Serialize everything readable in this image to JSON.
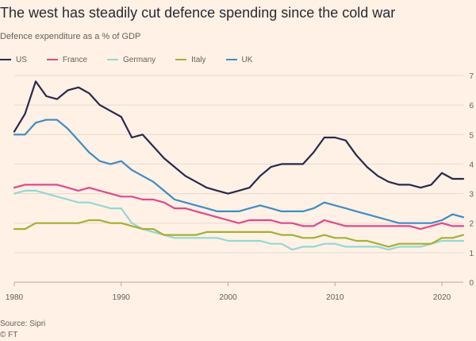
{
  "header": {
    "title": "The west has steadily cut defence spending since the cold war",
    "subtitle": "Defence expenditure as a % of GDP"
  },
  "footer": {
    "source": "Source: Sipri",
    "credit": "© FT"
  },
  "chart_data": {
    "type": "line",
    "title": "The west has steadily cut defence spending since the cold war",
    "ylabel": "Defence expenditure as a % of GDP",
    "xlim": [
      1980,
      2022
    ],
    "ylim": [
      0,
      7
    ],
    "yticks": [
      0,
      1,
      2,
      3,
      4,
      5,
      6,
      7
    ],
    "xticks": [
      1980,
      1990,
      2000,
      2010,
      2020
    ],
    "grid": true,
    "legend_position": "top-left",
    "series": [
      {
        "name": "US",
        "color": "#262a4c",
        "x": [
          1980,
          1981,
          1982,
          1983,
          1984,
          1985,
          1986,
          1987,
          1988,
          1989,
          1990,
          1991,
          1992,
          1993,
          1994,
          1995,
          1996,
          1997,
          1998,
          1999,
          2000,
          2001,
          2002,
          2003,
          2004,
          2005,
          2006,
          2007,
          2008,
          2009,
          2010,
          2011,
          2012,
          2013,
          2014,
          2015,
          2016,
          2017,
          2018,
          2019,
          2020,
          2021,
          2022
        ],
        "values": [
          5.1,
          5.7,
          6.8,
          6.3,
          6.2,
          6.5,
          6.6,
          6.4,
          6.0,
          5.8,
          5.6,
          4.9,
          5.0,
          4.6,
          4.2,
          3.9,
          3.6,
          3.4,
          3.2,
          3.1,
          3.0,
          3.1,
          3.2,
          3.6,
          3.9,
          4.0,
          4.0,
          4.0,
          4.4,
          4.9,
          4.9,
          4.8,
          4.3,
          3.9,
          3.6,
          3.4,
          3.3,
          3.3,
          3.2,
          3.3,
          3.7,
          3.5,
          3.5
        ]
      },
      {
        "name": "France",
        "color": "#e0488c",
        "x": [
          1980,
          1981,
          1982,
          1983,
          1984,
          1985,
          1986,
          1987,
          1988,
          1989,
          1990,
          1991,
          1992,
          1993,
          1994,
          1995,
          1996,
          1997,
          1998,
          1999,
          2000,
          2001,
          2002,
          2003,
          2004,
          2005,
          2006,
          2007,
          2008,
          2009,
          2010,
          2011,
          2012,
          2013,
          2014,
          2015,
          2016,
          2017,
          2018,
          2019,
          2020,
          2021,
          2022
        ],
        "values": [
          3.2,
          3.3,
          3.3,
          3.3,
          3.3,
          3.2,
          3.1,
          3.2,
          3.1,
          3.0,
          2.9,
          2.9,
          2.8,
          2.8,
          2.7,
          2.5,
          2.5,
          2.4,
          2.3,
          2.2,
          2.1,
          2.0,
          2.1,
          2.1,
          2.1,
          2.0,
          2.0,
          1.9,
          1.9,
          2.1,
          2.0,
          1.9,
          1.9,
          1.9,
          1.9,
          1.9,
          1.9,
          1.9,
          1.8,
          1.9,
          2.0,
          1.9,
          1.9
        ]
      },
      {
        "name": "Germany",
        "color": "#96d7d2",
        "x": [
          1980,
          1981,
          1982,
          1983,
          1984,
          1985,
          1986,
          1987,
          1988,
          1989,
          1990,
          1991,
          1992,
          1993,
          1994,
          1995,
          1996,
          1997,
          1998,
          1999,
          2000,
          2001,
          2002,
          2003,
          2004,
          2005,
          2006,
          2007,
          2008,
          2009,
          2010,
          2011,
          2012,
          2013,
          2014,
          2015,
          2016,
          2017,
          2018,
          2019,
          2020,
          2021,
          2022
        ],
        "values": [
          3.0,
          3.1,
          3.1,
          3.0,
          2.9,
          2.8,
          2.7,
          2.7,
          2.6,
          2.5,
          2.5,
          2.0,
          1.8,
          1.7,
          1.6,
          1.5,
          1.5,
          1.5,
          1.5,
          1.5,
          1.4,
          1.4,
          1.4,
          1.4,
          1.3,
          1.3,
          1.1,
          1.2,
          1.2,
          1.3,
          1.3,
          1.2,
          1.2,
          1.2,
          1.2,
          1.1,
          1.2,
          1.2,
          1.2,
          1.3,
          1.4,
          1.4,
          1.4
        ]
      },
      {
        "name": "Italy",
        "color": "#a4b034",
        "x": [
          1980,
          1981,
          1982,
          1983,
          1984,
          1985,
          1986,
          1987,
          1988,
          1989,
          1990,
          1991,
          1992,
          1993,
          1994,
          1995,
          1996,
          1997,
          1998,
          1999,
          2000,
          2001,
          2002,
          2003,
          2004,
          2005,
          2006,
          2007,
          2008,
          2009,
          2010,
          2011,
          2012,
          2013,
          2014,
          2015,
          2016,
          2017,
          2018,
          2019,
          2020,
          2021,
          2022
        ],
        "values": [
          1.8,
          1.8,
          2.0,
          2.0,
          2.0,
          2.0,
          2.0,
          2.1,
          2.1,
          2.0,
          2.0,
          1.9,
          1.8,
          1.8,
          1.6,
          1.6,
          1.6,
          1.6,
          1.7,
          1.7,
          1.7,
          1.7,
          1.7,
          1.7,
          1.7,
          1.6,
          1.6,
          1.5,
          1.5,
          1.6,
          1.5,
          1.5,
          1.4,
          1.4,
          1.3,
          1.2,
          1.3,
          1.3,
          1.3,
          1.3,
          1.5,
          1.5,
          1.6
        ]
      },
      {
        "name": "UK",
        "color": "#3f8cc4",
        "x": [
          1980,
          1981,
          1982,
          1983,
          1984,
          1985,
          1986,
          1987,
          1988,
          1989,
          1990,
          1991,
          1992,
          1993,
          1994,
          1995,
          1996,
          1997,
          1998,
          1999,
          2000,
          2001,
          2002,
          2003,
          2004,
          2005,
          2006,
          2007,
          2008,
          2009,
          2010,
          2011,
          2012,
          2013,
          2014,
          2015,
          2016,
          2017,
          2018,
          2019,
          2020,
          2021,
          2022
        ],
        "values": [
          5.0,
          5.0,
          5.4,
          5.5,
          5.5,
          5.2,
          4.8,
          4.4,
          4.1,
          4.0,
          4.1,
          3.8,
          3.6,
          3.4,
          3.1,
          2.8,
          2.7,
          2.6,
          2.5,
          2.4,
          2.4,
          2.4,
          2.5,
          2.6,
          2.5,
          2.4,
          2.4,
          2.4,
          2.5,
          2.7,
          2.6,
          2.5,
          2.4,
          2.3,
          2.2,
          2.1,
          2.0,
          2.0,
          2.0,
          2.0,
          2.1,
          2.3,
          2.2
        ]
      }
    ]
  }
}
